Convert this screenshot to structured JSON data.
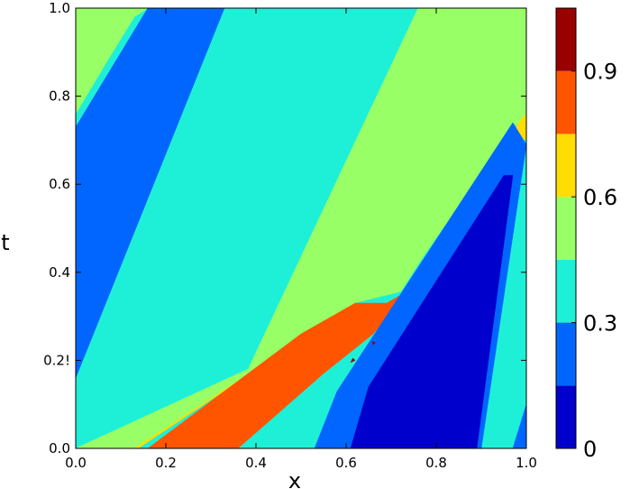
{
  "chart_data": {
    "type": "contour",
    "xlabel": "x",
    "ylabel": "t",
    "xlim": [
      0.0,
      1.0
    ],
    "ylim": [
      0.0,
      1.0
    ],
    "x_ticks": [
      "0.0",
      "0.2",
      "0.4",
      "0.6",
      "0.8",
      "1.0"
    ],
    "y_ticks": [
      "0.0",
      "0.2!",
      "0.4",
      "0.6",
      "0.8",
      "1.0"
    ],
    "colorbar": {
      "range": [
        0.0,
        1.05
      ],
      "tick_labels": [
        "0",
        "0.3",
        "0.6",
        "0.9"
      ],
      "levels": [
        0.0,
        0.15,
        0.3,
        0.45,
        0.6,
        0.75,
        0.9,
        1.05
      ],
      "colors": [
        "#0000cc",
        "#0066ff",
        "#1ef0d8",
        "#99ff66",
        "#ffdd00",
        "#ff5500",
        "#990000"
      ]
    },
    "regions": [
      {
        "level": 2,
        "points": [
          [
            0.0,
            0.0
          ],
          [
            1.0,
            0.0
          ],
          [
            1.0,
            1.0
          ],
          [
            0.0,
            1.0
          ]
        ]
      },
      {
        "level": 3,
        "points": [
          [
            0.0,
            0.76
          ],
          [
            0.07,
            0.88
          ],
          [
            0.13,
            0.98
          ],
          [
            0.16,
            1.0
          ],
          [
            0.0,
            1.0
          ]
        ]
      },
      {
        "level": 3,
        "points": [
          [
            0.17,
            0.0
          ],
          [
            0.5,
            0.0
          ],
          [
            0.96,
            0.74
          ],
          [
            1.0,
            0.75
          ],
          [
            1.0,
            1.0
          ],
          [
            0.76,
            1.0
          ],
          [
            0.3,
            0.0
          ]
        ]
      },
      {
        "level": 1,
        "points": [
          [
            0.0,
            0.73
          ],
          [
            0.16,
            1.0
          ],
          [
            0.33,
            1.0
          ],
          [
            0.0,
            0.16
          ]
        ]
      },
      {
        "level": 3,
        "points": [
          [
            0.0,
            0.0
          ],
          [
            0.7,
            0.33
          ],
          [
            0.97,
            0.73
          ],
          [
            1.0,
            0.75
          ],
          [
            1.0,
            1.0
          ],
          [
            0.76,
            1.0
          ],
          [
            0.3,
            0.0
          ]
        ]
      },
      {
        "level": 4,
        "points": [
          [
            0.13,
            0.0
          ],
          [
            0.55,
            0.28
          ],
          [
            0.74,
            0.36
          ],
          [
            0.99,
            0.75
          ],
          [
            1.0,
            0.76
          ],
          [
            1.0,
            0.0
          ]
        ]
      },
      {
        "level": 2,
        "points": [
          [
            0.05,
            0.0
          ],
          [
            0.14,
            0.0
          ],
          [
            0.55,
            0.28
          ],
          [
            0.62,
            0.33
          ],
          [
            0.74,
            0.36
          ],
          [
            0.99,
            0.7
          ],
          [
            1.0,
            0.7
          ],
          [
            1.0,
            0.0
          ]
        ]
      },
      {
        "level": 5,
        "points": [
          [
            0.16,
            0.0
          ],
          [
            0.36,
            0.0
          ],
          [
            0.55,
            0.17
          ],
          [
            0.66,
            0.26
          ],
          [
            0.74,
            0.36
          ],
          [
            0.69,
            0.33
          ],
          [
            0.62,
            0.33
          ],
          [
            0.5,
            0.26
          ]
        ]
      },
      {
        "level": 1,
        "points": [
          [
            0.53,
            0.0
          ],
          [
            0.9,
            0.0
          ],
          [
            1.0,
            0.69
          ],
          [
            0.97,
            0.74
          ],
          [
            0.58,
            0.13
          ]
        ]
      },
      {
        "level": 0,
        "points": [
          [
            0.61,
            0.0
          ],
          [
            0.89,
            0.0
          ],
          [
            0.97,
            0.62
          ],
          [
            0.95,
            0.62
          ],
          [
            0.65,
            0.14
          ]
        ]
      },
      {
        "level": 1,
        "points": [
          [
            0.97,
            0.0
          ],
          [
            1.0,
            0.0
          ],
          [
            1.0,
            0.1
          ]
        ]
      },
      {
        "level": 6,
        "points": [
          [
            0.61,
            0.195
          ],
          [
            0.62,
            0.2
          ],
          [
            0.615,
            0.205
          ]
        ]
      },
      {
        "level": 6,
        "points": [
          [
            0.66,
            0.235
          ],
          [
            0.665,
            0.24
          ],
          [
            0.658,
            0.243
          ]
        ]
      }
    ]
  }
}
